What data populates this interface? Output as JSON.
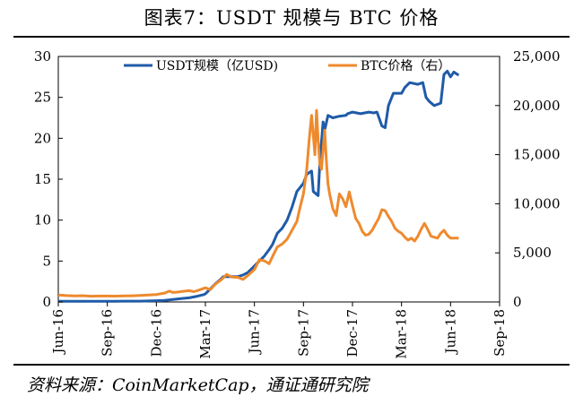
{
  "title": "图表7：USDT 规模与 BTC 价格",
  "source": "资料来源：CoinMarketCap，通证通研究院",
  "chart_data": {
    "type": "line",
    "x_ticks": [
      "Jun-16",
      "Sep-16",
      "Dec-16",
      "Mar-17",
      "Jun-17",
      "Sep-17",
      "Dec-17",
      "Mar-18",
      "Jun-18",
      "Sep-18"
    ],
    "y_left": {
      "range": [
        0,
        30
      ],
      "ticks": [
        "0",
        "5",
        "10",
        "15",
        "20",
        "25",
        "30"
      ]
    },
    "y_right": {
      "range": [
        0,
        25000
      ],
      "ticks": [
        "0",
        "5,000",
        "10,000",
        "15,000",
        "20,000",
        "25,000"
      ]
    },
    "legend_position": "top",
    "series": [
      {
        "name": "USDT规模（亿USD)",
        "axis": "left",
        "color": "#1F5BA8",
        "points": [
          [
            0,
            0.08
          ],
          [
            1,
            0.08
          ],
          [
            2,
            0.08
          ],
          [
            3,
            0.08
          ],
          [
            4,
            0.1
          ],
          [
            5,
            0.1
          ],
          [
            6,
            0.15
          ],
          [
            6.5,
            0.2
          ],
          [
            7,
            0.3
          ],
          [
            7.5,
            0.4
          ],
          [
            8,
            0.5
          ],
          [
            8.5,
            0.7
          ],
          [
            8.9,
            0.9
          ],
          [
            9,
            1.0
          ],
          [
            9.3,
            1.6
          ],
          [
            9.6,
            2.2
          ],
          [
            9.9,
            2.7
          ],
          [
            10.1,
            3.1
          ],
          [
            10.4,
            3.1
          ],
          [
            11.0,
            3.1
          ],
          [
            11.3,
            3.3
          ],
          [
            11.6,
            3.6
          ],
          [
            12.0,
            4.4
          ],
          [
            12.3,
            5.0
          ],
          [
            12.6,
            5.6
          ],
          [
            12.9,
            6.4
          ],
          [
            13.1,
            7.0
          ],
          [
            13.4,
            8.4
          ],
          [
            13.7,
            9.0
          ],
          [
            14.0,
            10.0
          ],
          [
            14.3,
            11.6
          ],
          [
            14.6,
            13.5
          ],
          [
            14.8,
            14.0
          ],
          [
            15.0,
            14.5
          ],
          [
            15.2,
            15.6
          ],
          [
            15.5,
            16.0
          ],
          [
            15.6,
            13.5
          ],
          [
            15.9,
            13.0
          ],
          [
            16.0,
            17.0
          ],
          [
            16.2,
            22.0
          ],
          [
            16.3,
            21.0
          ],
          [
            16.5,
            22.8
          ],
          [
            16.8,
            22.5
          ],
          [
            17.2,
            22.7
          ],
          [
            17.6,
            22.8
          ],
          [
            17.7,
            23.0
          ],
          [
            18.0,
            23.2
          ],
          [
            18.5,
            23.0
          ],
          [
            19.0,
            23.2
          ],
          [
            19.3,
            23.1
          ],
          [
            19.5,
            23.2
          ],
          [
            19.8,
            21.5
          ],
          [
            20.0,
            21.3
          ],
          [
            20.2,
            24.0
          ],
          [
            20.5,
            25.5
          ],
          [
            21.0,
            25.5
          ],
          [
            21.2,
            26.2
          ],
          [
            21.5,
            26.8
          ],
          [
            22.0,
            26.6
          ],
          [
            22.3,
            26.8
          ],
          [
            22.5,
            25.0
          ],
          [
            22.7,
            24.5
          ],
          [
            23.0,
            24.0
          ],
          [
            23.4,
            24.3
          ],
          [
            23.6,
            27.8
          ],
          [
            23.8,
            28.2
          ],
          [
            24.0,
            27.5
          ],
          [
            24.2,
            28.1
          ],
          [
            24.5,
            27.7
          ]
        ]
      },
      {
        "name": "BTC价格（右）",
        "axis": "right",
        "color": "#EE8A2E",
        "points": [
          [
            0,
            700
          ],
          [
            0.5,
            650
          ],
          [
            1,
            620
          ],
          [
            1.5,
            640
          ],
          [
            2,
            580
          ],
          [
            2.5,
            600
          ],
          [
            3,
            600
          ],
          [
            3.5,
            590
          ],
          [
            4,
            610
          ],
          [
            4.5,
            630
          ],
          [
            5,
            660
          ],
          [
            5.5,
            700
          ],
          [
            6,
            760
          ],
          [
            6.5,
            900
          ],
          [
            6.8,
            1100
          ],
          [
            7,
            970
          ],
          [
            7.3,
            1000
          ],
          [
            7.6,
            1080
          ],
          [
            8,
            1150
          ],
          [
            8.3,
            1050
          ],
          [
            8.6,
            1200
          ],
          [
            9,
            1450
          ],
          [
            9.3,
            1250
          ],
          [
            9.6,
            1800
          ],
          [
            10,
            2300
          ],
          [
            10.3,
            2800
          ],
          [
            10.6,
            2550
          ],
          [
            11,
            2500
          ],
          [
            11.3,
            2300
          ],
          [
            11.6,
            2700
          ],
          [
            12,
            3300
          ],
          [
            12.3,
            4300
          ],
          [
            12.6,
            4200
          ],
          [
            12.9,
            3900
          ],
          [
            13.1,
            4600
          ],
          [
            13.4,
            5600
          ],
          [
            13.7,
            5900
          ],
          [
            14.0,
            6400
          ],
          [
            14.2,
            7000
          ],
          [
            14.4,
            7600
          ],
          [
            14.6,
            8200
          ],
          [
            14.8,
            9700
          ],
          [
            15.0,
            11000
          ],
          [
            15.2,
            13500
          ],
          [
            15.35,
            16500
          ],
          [
            15.5,
            19000
          ],
          [
            15.6,
            17000
          ],
          [
            15.7,
            15000
          ],
          [
            15.8,
            19500
          ],
          [
            15.9,
            16500
          ],
          [
            16.0,
            14000
          ],
          [
            16.1,
            13500
          ],
          [
            16.3,
            17500
          ],
          [
            16.4,
            14500
          ],
          [
            16.5,
            12000
          ],
          [
            16.6,
            11000
          ],
          [
            16.8,
            9500
          ],
          [
            17.0,
            8800
          ],
          [
            17.2,
            11000
          ],
          [
            17.4,
            10500
          ],
          [
            17.6,
            9700
          ],
          [
            17.8,
            11200
          ],
          [
            18.0,
            9800
          ],
          [
            18.2,
            8500
          ],
          [
            18.4,
            8000
          ],
          [
            18.6,
            7200
          ],
          [
            18.8,
            6800
          ],
          [
            19.0,
            6900
          ],
          [
            19.2,
            7300
          ],
          [
            19.4,
            7900
          ],
          [
            19.6,
            8500
          ],
          [
            19.8,
            9400
          ],
          [
            20.0,
            9300
          ],
          [
            20.2,
            8700
          ],
          [
            20.4,
            8200
          ],
          [
            20.6,
            7500
          ],
          [
            20.8,
            7200
          ],
          [
            21.0,
            7000
          ],
          [
            21.2,
            6600
          ],
          [
            21.4,
            6300
          ],
          [
            21.6,
            6500
          ],
          [
            21.8,
            6200
          ],
          [
            22.0,
            6700
          ],
          [
            22.2,
            7400
          ],
          [
            22.4,
            8000
          ],
          [
            22.6,
            7400
          ],
          [
            22.8,
            6700
          ],
          [
            23.0,
            6600
          ],
          [
            23.2,
            6500
          ],
          [
            23.4,
            7000
          ],
          [
            23.6,
            7300
          ],
          [
            23.8,
            6800
          ],
          [
            24.0,
            6500
          ],
          [
            24.2,
            6500
          ],
          [
            24.5,
            6500
          ]
        ]
      }
    ]
  }
}
